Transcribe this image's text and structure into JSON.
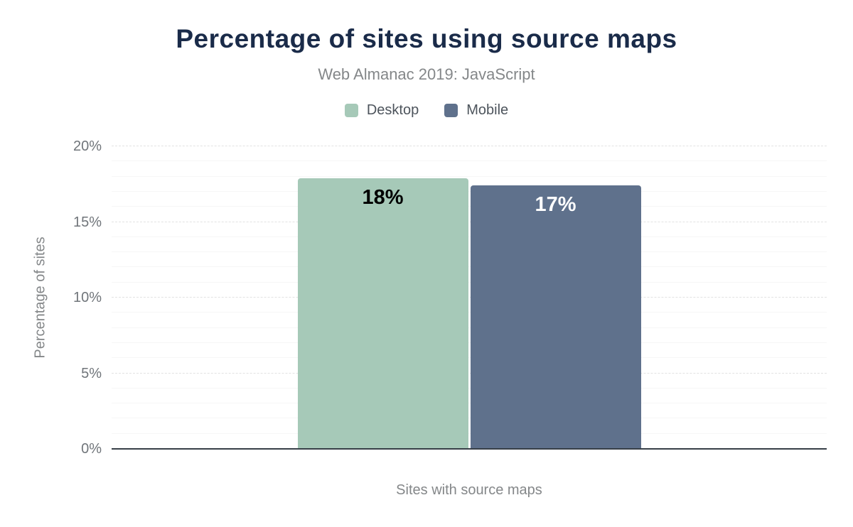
{
  "chart_data": {
    "type": "bar",
    "title": "Percentage of sites using source maps",
    "subtitle": "Web Almanac 2019: JavaScript",
    "xlabel": "Sites with source maps",
    "ylabel": "Percentage of sites",
    "categories": [
      "Sites with source maps"
    ],
    "series": [
      {
        "name": "Desktop",
        "value": 17.9,
        "data_label": "18%",
        "color": "#a6c9b8",
        "label_color": "#000000"
      },
      {
        "name": "Mobile",
        "value": 17.4,
        "data_label": "17%",
        "color": "#5f718c",
        "label_color": "#ffffff"
      }
    ],
    "ylim": [
      0,
      20
    ],
    "ytick_step": 5,
    "minor_tick_step": 1,
    "yticks": [
      {
        "value": 0,
        "label": "0%"
      },
      {
        "value": 5,
        "label": "5%"
      },
      {
        "value": 10,
        "label": "10%"
      },
      {
        "value": 15,
        "label": "15%"
      },
      {
        "value": 20,
        "label": "20%"
      }
    ],
    "legend_position": "top",
    "grid": {
      "major_style": "dashed",
      "minor_style": "solid"
    }
  },
  "colors": {
    "background": "#ffffff",
    "title": "#1a2b49",
    "subtitle": "#848789",
    "axis_label": "#848789",
    "tick_label": "#70757a",
    "legend_label": "#4d545c",
    "baseline": "#373f47",
    "grid_major": "#e2e2e2",
    "grid_minor": "#f6f6f6"
  }
}
